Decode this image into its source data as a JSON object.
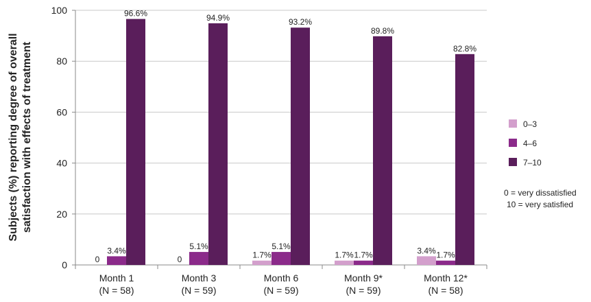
{
  "chart_data": {
    "type": "bar",
    "ylabel_lines": [
      "Subjects (%) reporting degree of overall",
      "satisfaction with effects of treatment"
    ],
    "ylim": [
      0,
      100
    ],
    "yticks": [
      0,
      20,
      40,
      60,
      80,
      100
    ],
    "grid": true,
    "legend_position": "right",
    "categories": [
      {
        "name": "Month 1",
        "n": "(N = 58)"
      },
      {
        "name": "Month 3",
        "n": "(N = 59)"
      },
      {
        "name": "Month 6",
        "n": "(N = 59)"
      },
      {
        "name": "Month 9*",
        "n": "(N = 59)"
      },
      {
        "name": "Month 12*",
        "n": "(N = 58)"
      }
    ],
    "series": [
      {
        "name": "0–3",
        "color": "#d39fcc",
        "values": [
          0,
          0,
          1.7,
          1.7,
          3.4
        ],
        "labels": [
          "0",
          "0",
          "1.7%",
          "1.7%",
          "3.4%"
        ]
      },
      {
        "name": "4–6",
        "color": "#8b2a8a",
        "values": [
          3.4,
          5.1,
          5.1,
          1.7,
          1.7
        ],
        "labels": [
          "3.4%",
          "5.1%",
          "5.1%",
          "1.7%",
          "1.7%"
        ]
      },
      {
        "name": "7–10",
        "color": "#5a1e5b",
        "values": [
          96.6,
          94.9,
          93.2,
          89.8,
          82.8
        ],
        "labels": [
          "96.6%",
          "94.9%",
          "93.2%",
          "89.8%",
          "82.8%"
        ]
      }
    ],
    "notes": [
      "0 = very dissatisfied",
      "10 = very satisfied"
    ]
  },
  "colors": {
    "grid": "#c8c8c8",
    "axis": "#888888",
    "text": "#222222"
  }
}
